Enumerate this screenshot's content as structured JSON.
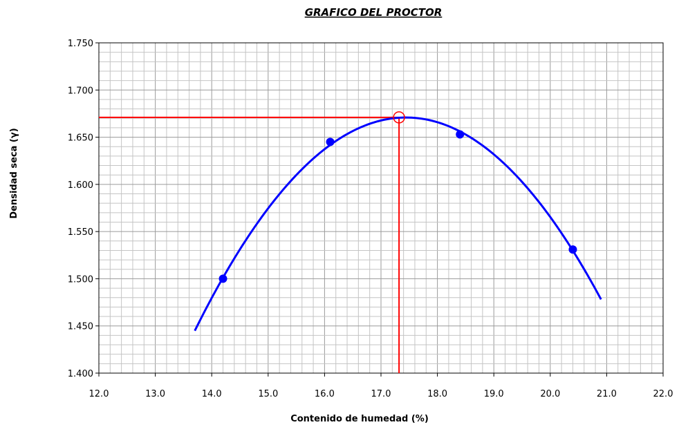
{
  "chart_data": {
    "type": "scatter",
    "title": "GRAFICO DEL PROCTOR",
    "xlabel": "Contenido de humedad (%)",
    "ylabel": "Densidad seca (γ)",
    "xlim": [
      12.0,
      22.0
    ],
    "ylim": [
      1.4,
      1.75
    ],
    "x_ticks": [
      "12.0",
      "13.0",
      "14.0",
      "15.0",
      "16.0",
      "17.0",
      "18.0",
      "19.0",
      "20.0",
      "21.0",
      "22.0"
    ],
    "y_ticks": [
      "1.400",
      "1.450",
      "1.500",
      "1.550",
      "1.600",
      "1.650",
      "1.700",
      "1.750"
    ],
    "grid": true,
    "series": [
      {
        "values_x": [
          14.2,
          16.1,
          18.4,
          20.4
        ],
        "values_y": [
          1.5,
          1.645,
          1.653,
          1.531
        ],
        "color": "#0000ff",
        "fit": "polynomial",
        "fit_range": [
          13.7,
          20.9
        ]
      }
    ],
    "optimum": {
      "x": 17.32,
      "y": 1.671,
      "color": "#ff0000"
    }
  }
}
